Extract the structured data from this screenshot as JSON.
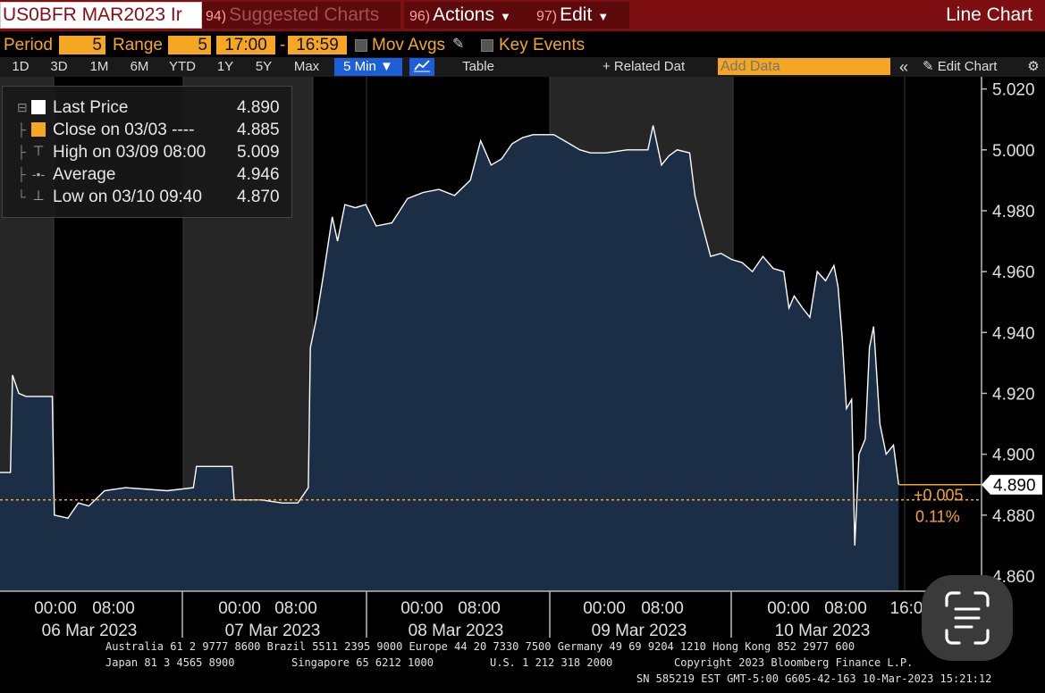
{
  "titlebar": {
    "ticker": "US0BFR MAR2023 Ir",
    "suggested": {
      "num": "94)",
      "label": "Suggested Charts"
    },
    "actions": {
      "num": "96)",
      "label": "Actions"
    },
    "edit": {
      "num": "97)",
      "label": "Edit"
    },
    "chart_type": "Line Chart"
  },
  "controls": {
    "period_label": "Period",
    "period_value": "5",
    "range_label": "Range",
    "range_value": "5",
    "time_from": "17:00",
    "dash": "-",
    "time_to": "16:59",
    "mov_avgs": "Mov Avgs",
    "key_events": "Key Events"
  },
  "toolbar": {
    "ranges": [
      "1D",
      "3D",
      "1M",
      "6M",
      "YTD",
      "1Y",
      "5Y",
      "Max"
    ],
    "interval": "5 Min",
    "table": "Table",
    "related_data": "+ Related Dat",
    "add_data_placeholder": "Add Data",
    "collapse": "«",
    "edit_chart": "Edit Chart"
  },
  "legend": {
    "rows": [
      {
        "name": "Last Price",
        "value": "4.890",
        "color": "#ffffff",
        "marker": "square"
      },
      {
        "name": "Close on 03/03 ----",
        "value": "4.885",
        "color": "#f5a623",
        "marker": "square"
      },
      {
        "name": "High on 03/09 08:00",
        "value": "5.009",
        "color": "#aaaaaa",
        "marker": "high"
      },
      {
        "name": "Average",
        "value": "4.946",
        "color": "#aaaaaa",
        "marker": "avg"
      },
      {
        "name": "Low on 03/10 09:40",
        "value": "4.870",
        "color": "#aaaaaa",
        "marker": "low"
      }
    ]
  },
  "chart_data": {
    "type": "area",
    "ylim": [
      4.855,
      5.024
    ],
    "y_ticks": [
      "5.020",
      "5.000",
      "4.980",
      "4.960",
      "4.940",
      "4.920",
      "4.900",
      "4.880",
      "4.860"
    ],
    "close_reference": 4.885,
    "last_price_label": "4.890",
    "change_label": "+0.005",
    "change_pct_label": "0.11%",
    "days": [
      {
        "label": "06 Mar 2023",
        "ticks": [
          "00:00",
          "08:00"
        ]
      },
      {
        "label": "07 Mar 2023",
        "ticks": [
          "00:00",
          "08:00"
        ]
      },
      {
        "label": "08 Mar 2023",
        "ticks": [
          "00:00",
          "08:00"
        ]
      },
      {
        "label": "09 Mar 2023",
        "ticks": [
          "00:00",
          "08:00"
        ]
      },
      {
        "label": "10 Mar 2023",
        "ticks": [
          "00:00",
          "08:00",
          "16:0"
        ]
      }
    ],
    "points": [
      [
        0.0,
        4.894
      ],
      [
        0.01,
        4.894
      ],
      [
        0.012,
        4.926
      ],
      [
        0.018,
        4.92
      ],
      [
        0.025,
        4.919
      ],
      [
        0.05,
        4.919
      ],
      [
        0.052,
        4.88
      ],
      [
        0.065,
        4.879
      ],
      [
        0.075,
        4.884
      ],
      [
        0.085,
        4.883
      ],
      [
        0.1,
        4.888
      ],
      [
        0.12,
        4.889
      ],
      [
        0.16,
        4.888
      ],
      [
        0.185,
        4.889
      ],
      [
        0.188,
        4.896
      ],
      [
        0.205,
        4.896
      ],
      [
        0.222,
        4.896
      ],
      [
        0.224,
        4.885
      ],
      [
        0.25,
        4.885
      ],
      [
        0.27,
        4.884
      ],
      [
        0.285,
        4.884
      ],
      [
        0.295,
        4.889
      ],
      [
        0.297,
        4.935
      ],
      [
        0.303,
        4.945
      ],
      [
        0.31,
        4.96
      ],
      [
        0.318,
        4.978
      ],
      [
        0.323,
        4.97
      ],
      [
        0.33,
        4.982
      ],
      [
        0.34,
        4.981
      ],
      [
        0.35,
        4.982
      ],
      [
        0.36,
        4.975
      ],
      [
        0.375,
        4.976
      ],
      [
        0.39,
        4.984
      ],
      [
        0.405,
        4.986
      ],
      [
        0.42,
        4.987
      ],
      [
        0.435,
        4.985
      ],
      [
        0.45,
        4.99
      ],
      [
        0.46,
        5.003
      ],
      [
        0.47,
        4.995
      ],
      [
        0.48,
        4.997
      ],
      [
        0.49,
        5.002
      ],
      [
        0.5,
        5.004
      ],
      [
        0.51,
        5.005
      ],
      [
        0.52,
        5.005
      ],
      [
        0.53,
        5.005
      ],
      [
        0.545,
        5.002
      ],
      [
        0.555,
        5.0
      ],
      [
        0.565,
        4.999
      ],
      [
        0.58,
        4.999
      ],
      [
        0.6,
        5.0
      ],
      [
        0.62,
        5.0
      ],
      [
        0.625,
        5.008
      ],
      [
        0.633,
        4.995
      ],
      [
        0.64,
        4.998
      ],
      [
        0.648,
        5.0
      ],
      [
        0.66,
        4.999
      ],
      [
        0.665,
        4.985
      ],
      [
        0.67,
        4.978
      ],
      [
        0.68,
        4.965
      ],
      [
        0.69,
        4.966
      ],
      [
        0.7,
        4.964
      ],
      [
        0.71,
        4.963
      ],
      [
        0.72,
        4.96
      ],
      [
        0.73,
        4.965
      ],
      [
        0.74,
        4.961
      ],
      [
        0.75,
        4.96
      ],
      [
        0.755,
        4.948
      ],
      [
        0.76,
        4.952
      ],
      [
        0.768,
        4.948
      ],
      [
        0.775,
        4.945
      ],
      [
        0.782,
        4.96
      ],
      [
        0.79,
        4.957
      ],
      [
        0.798,
        4.962
      ],
      [
        0.802,
        4.955
      ],
      [
        0.806,
        4.938
      ],
      [
        0.81,
        4.915
      ],
      [
        0.815,
        4.918
      ],
      [
        0.818,
        4.87
      ],
      [
        0.822,
        4.9
      ],
      [
        0.828,
        4.905
      ],
      [
        0.832,
        4.935
      ],
      [
        0.836,
        4.942
      ],
      [
        0.842,
        4.91
      ],
      [
        0.848,
        4.9
      ],
      [
        0.855,
        4.903
      ],
      [
        0.86,
        4.89
      ]
    ]
  },
  "footer": {
    "line1": "Australia 61 2 9777 8600 Brazil 5511 2395 9000 Europe 44 20 7330 7500 Germany 49 69 9204 1210 Hong Kong 852 2977 600",
    "line2a": "Japan 81 3 4565 8900",
    "line2b": "Singapore 65 6212 1000",
    "line2c": "U.S. 1 212 318 2000",
    "line2d": "Copyright 2023 Bloomberg Finance L.P.",
    "line3": "SN 585219 EST  GMT-5:00 G605-42-163 10-Mar-2023 15:21:12"
  }
}
